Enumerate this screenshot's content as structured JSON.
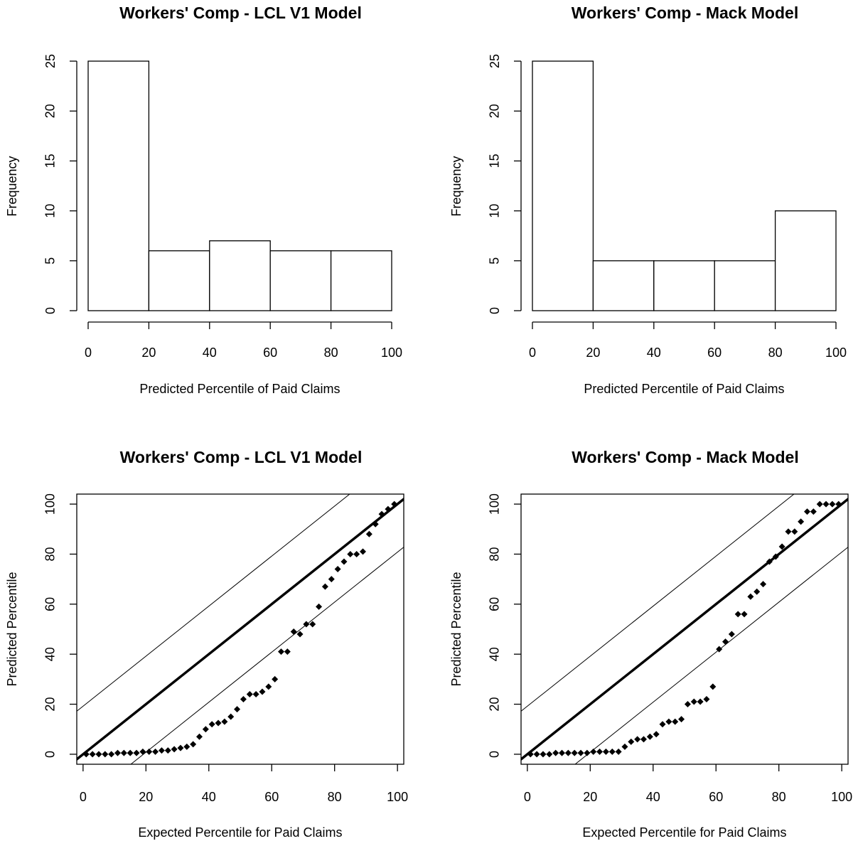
{
  "chart_data": [
    {
      "type": "histogram",
      "title": "Workers' Comp - LCL V1 Model",
      "xlabel": "Predicted Percentile of Paid Claims",
      "ylabel": "Frequency",
      "bins": [
        0,
        20,
        40,
        60,
        80,
        100
      ],
      "values": [
        25,
        6,
        7,
        6,
        6
      ],
      "xlim": [
        0,
        100
      ],
      "xticks": [
        0,
        20,
        40,
        60,
        80,
        100
      ],
      "ylim": [
        0,
        25
      ],
      "yticks": [
        0,
        5,
        10,
        15,
        20,
        25
      ]
    },
    {
      "type": "histogram",
      "title": "Workers' Comp - Mack Model",
      "xlabel": "Predicted Percentile of Paid Claims",
      "ylabel": "Frequency",
      "bins": [
        0,
        20,
        40,
        60,
        80,
        100
      ],
      "values": [
        25,
        5,
        5,
        5,
        10
      ],
      "xlim": [
        0,
        100
      ],
      "xticks": [
        0,
        20,
        40,
        60,
        80,
        100
      ],
      "ylim": [
        0,
        25
      ],
      "yticks": [
        0,
        5,
        10,
        15,
        20,
        25
      ]
    },
    {
      "type": "scatter",
      "title": "Workers' Comp - LCL V1 Model",
      "xlabel": "Expected Percentile for Paid Claims",
      "ylabel": "Predicted Percentile",
      "x": [
        1,
        3,
        5,
        7,
        9,
        11,
        13,
        15,
        17,
        19,
        21,
        23,
        25,
        27,
        29,
        31,
        33,
        35,
        37,
        39,
        41,
        43,
        45,
        47,
        49,
        51,
        53,
        55,
        57,
        59,
        61,
        63,
        65,
        67,
        69,
        71,
        73,
        75,
        77,
        79,
        81,
        83,
        85,
        87,
        89,
        91,
        93,
        95,
        97,
        99
      ],
      "values": [
        0,
        0,
        0,
        0,
        0,
        0.5,
        0.5,
        0.5,
        0.5,
        1,
        1,
        1,
        1.5,
        1.5,
        2,
        2.5,
        3,
        4,
        7,
        10,
        12,
        12.5,
        13,
        15,
        18,
        22,
        24,
        24,
        25,
        27,
        30,
        41,
        41,
        49,
        48,
        52,
        52,
        59,
        67,
        70,
        74,
        77,
        80,
        80,
        81,
        88,
        92,
        96,
        98,
        100
      ],
      "diagonal_bound": 19.2,
      "xlim": [
        -2,
        102
      ],
      "xticks": [
        0,
        20,
        40,
        60,
        80,
        100
      ],
      "ylim": [
        -4,
        104
      ],
      "yticks": [
        0,
        20,
        40,
        60,
        80,
        100
      ]
    },
    {
      "type": "scatter",
      "title": "Workers' Comp - Mack Model",
      "xlabel": "Expected Percentile for Paid Claims",
      "ylabel": "Predicted Percentile",
      "x": [
        1,
        3,
        5,
        7,
        9,
        11,
        13,
        15,
        17,
        19,
        21,
        23,
        25,
        27,
        29,
        31,
        33,
        35,
        37,
        39,
        41,
        43,
        45,
        47,
        49,
        51,
        53,
        55,
        57,
        59,
        61,
        63,
        65,
        67,
        69,
        71,
        73,
        75,
        77,
        79,
        81,
        83,
        85,
        87,
        89,
        91,
        93,
        95,
        97,
        99
      ],
      "values": [
        0,
        0,
        0,
        0,
        0.5,
        0.5,
        0.5,
        0.5,
        0.5,
        0.5,
        1,
        1,
        1,
        1,
        1,
        3,
        5,
        6,
        6,
        7,
        8,
        12,
        13,
        13,
        14,
        20,
        21,
        21,
        22,
        27,
        42,
        45,
        48,
        56,
        56,
        63,
        65,
        68,
        77,
        79,
        83,
        89,
        89,
        93,
        97,
        97,
        100,
        100,
        100,
        100
      ],
      "diagonal_bound": 19.2,
      "xlim": [
        -2,
        102
      ],
      "xticks": [
        0,
        20,
        40,
        60,
        80,
        100
      ],
      "ylim": [
        -4,
        104
      ],
      "yticks": [
        0,
        20,
        40,
        60,
        80,
        100
      ]
    }
  ]
}
